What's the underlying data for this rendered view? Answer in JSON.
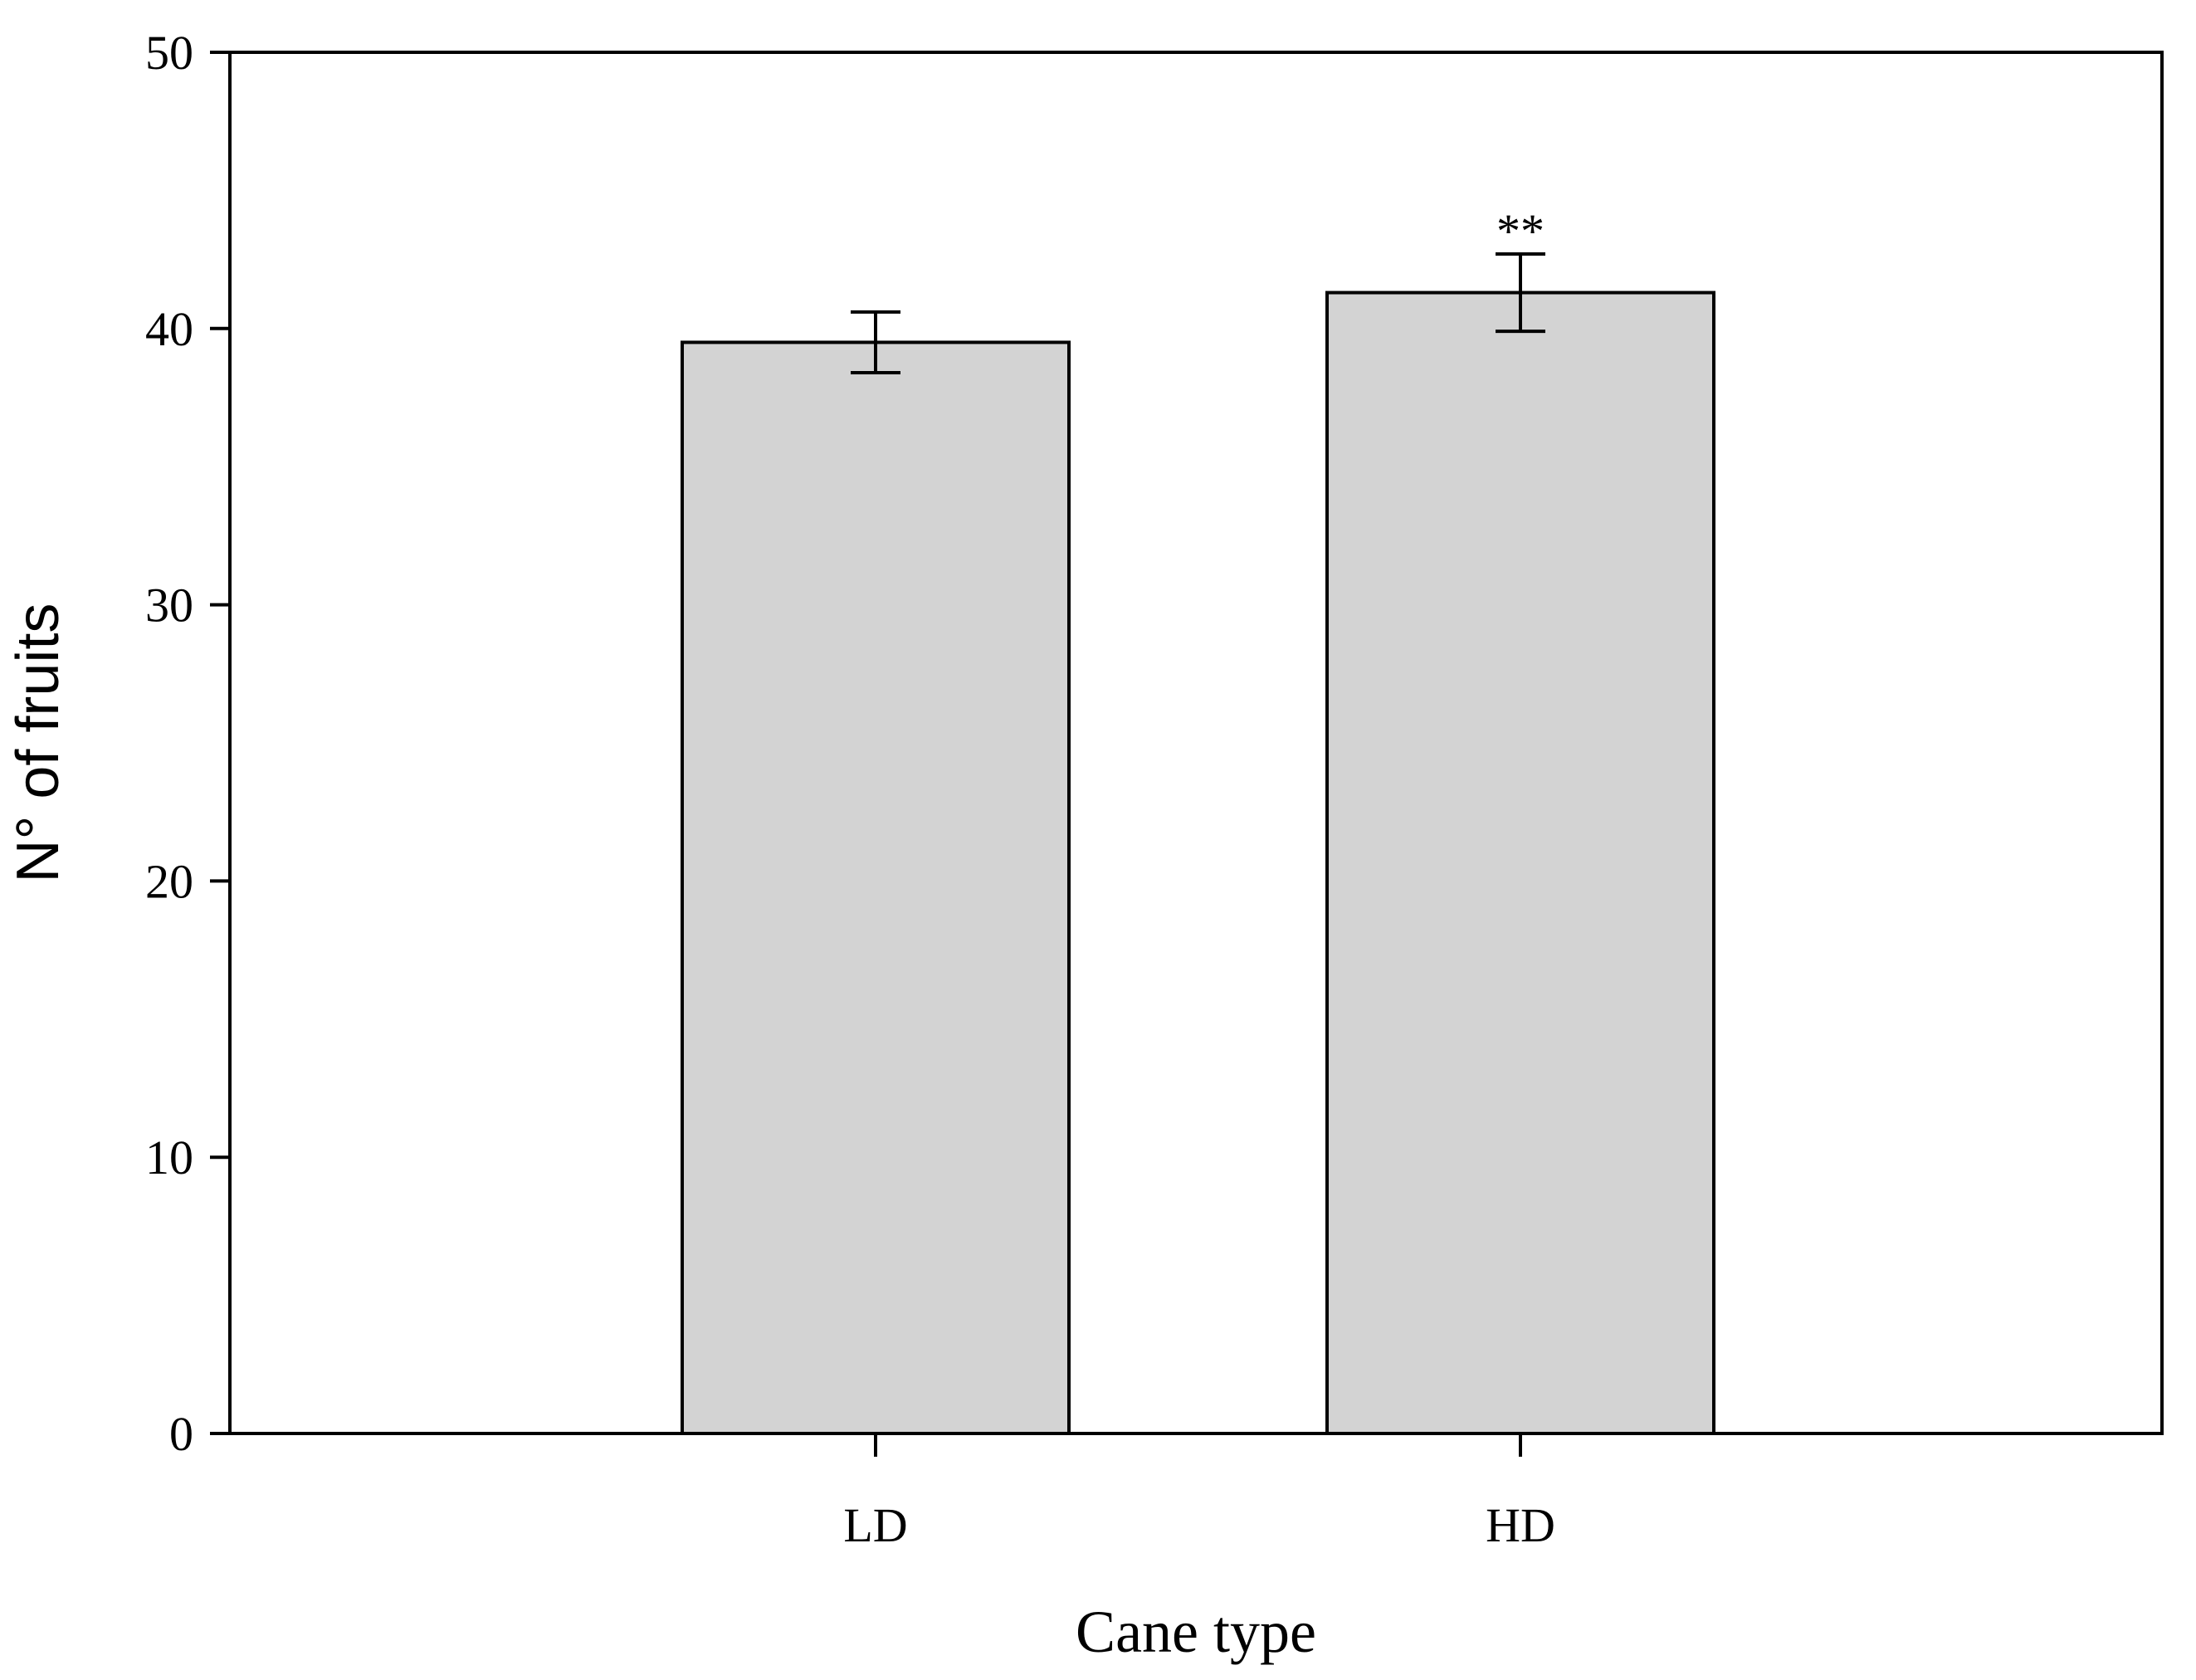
{
  "chart_data": {
    "type": "bar",
    "title": "",
    "xlabel": "Cane type",
    "ylabel": "N° of fruits",
    "categories": [
      "LD",
      "HD"
    ],
    "values": [
      39.5,
      41.3
    ],
    "error": [
      1.1,
      1.4
    ],
    "annotations": [
      "",
      "**"
    ],
    "ylim": [
      0,
      50
    ],
    "yticks": [
      0,
      10,
      20,
      30,
      40,
      50
    ],
    "ytick_labels": [
      "0",
      "10",
      "20",
      "30",
      "40",
      "50"
    ],
    "grid": false,
    "bar_color": "#d3d3d3",
    "edge_color": "#000000"
  }
}
